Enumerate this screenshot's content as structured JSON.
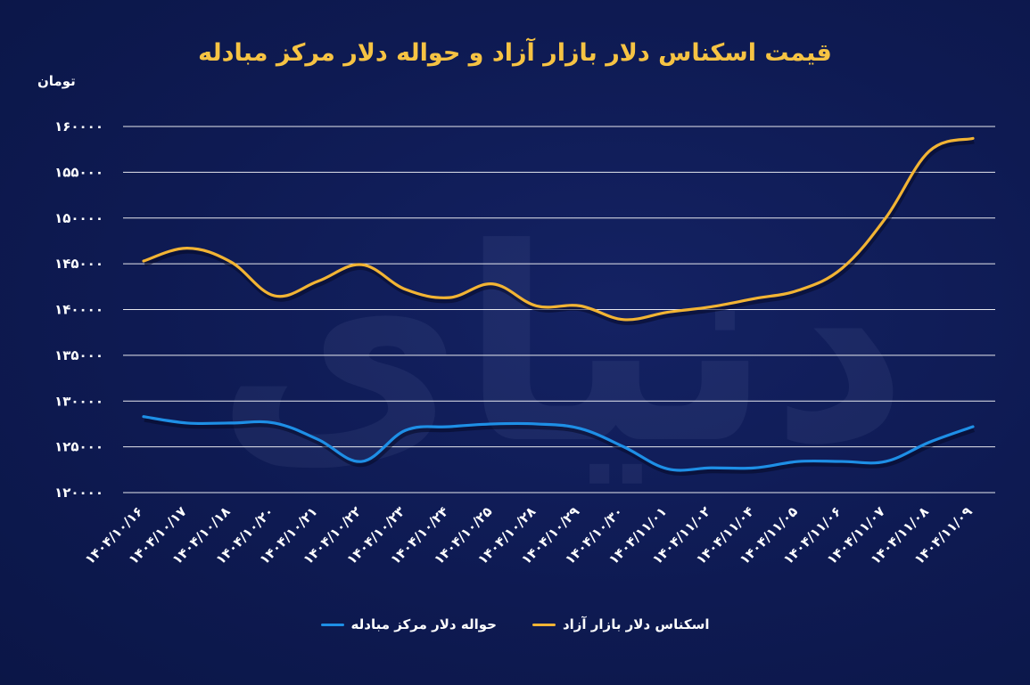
{
  "chart_data": {
    "type": "line",
    "title": "قیمت اسکناس دلار بازار آزاد و حواله دلار مرکز مبادله",
    "ylabel": "تومان",
    "ylim": [
      120000,
      160000
    ],
    "y_ticks": [
      120000,
      125000,
      130000,
      135000,
      140000,
      145000,
      150000,
      155000,
      160000
    ],
    "y_tick_labels": [
      "۱۲۰۰۰۰",
      "۱۲۵۰۰۰",
      "۱۳۰۰۰۰",
      "۱۳۵۰۰۰",
      "۱۴۰۰۰۰",
      "۱۴۵۰۰۰",
      "۱۵۰۰۰۰",
      "۱۵۵۰۰۰",
      "۱۶۰۰۰۰"
    ],
    "categories": [
      "۱۴۰۴/۱۰/۱۶",
      "۱۴۰۴/۱۰/۱۷",
      "۱۴۰۴/۱۰/۱۸",
      "۱۴۰۴/۱۰/۲۰",
      "۱۴۰۴/۱۰/۲۱",
      "۱۴۰۴/۱۰/۲۲",
      "۱۴۰۴/۱۰/۲۳",
      "۱۴۰۴/۱۰/۲۴",
      "۱۴۰۴/۱۰/۲۵",
      "۱۴۰۴/۱۰/۲۸",
      "۱۴۰۴/۱۰/۲۹",
      "۱۴۰۴/۱۰/۳۰",
      "۱۴۰۴/۱۱/۰۱",
      "۱۴۰۴/۱۱/۰۲",
      "۱۴۰۴/۱۱/۰۴",
      "۱۴۰۴/۱۱/۰۵",
      "۱۴۰۴/۱۱/۰۶",
      "۱۴۰۴/۱۱/۰۷",
      "۱۴۰۴/۱۱/۰۸",
      "۱۴۰۴/۱۱/۰۹"
    ],
    "series": [
      {
        "name": "اسکناس دلار بازار آزاد",
        "color": "#f2b434",
        "values": [
          145300,
          146700,
          145200,
          141500,
          143100,
          144900,
          142200,
          141300,
          142800,
          140400,
          140400,
          138900,
          139700,
          140300,
          141200,
          142100,
          144500,
          150000,
          157300,
          158700
        ]
      },
      {
        "name": "حواله دلار مرکز مبادله",
        "color": "#1e8fe6",
        "values": [
          128300,
          127600,
          127600,
          127600,
          125800,
          123400,
          126800,
          127200,
          127500,
          127500,
          127000,
          125000,
          122600,
          122700,
          122700,
          123400,
          123400,
          123400,
          125500,
          127200
        ]
      }
    ],
    "grid": true,
    "legend_position": "bottom"
  },
  "watermark_text": "دنیای اقتصاد"
}
